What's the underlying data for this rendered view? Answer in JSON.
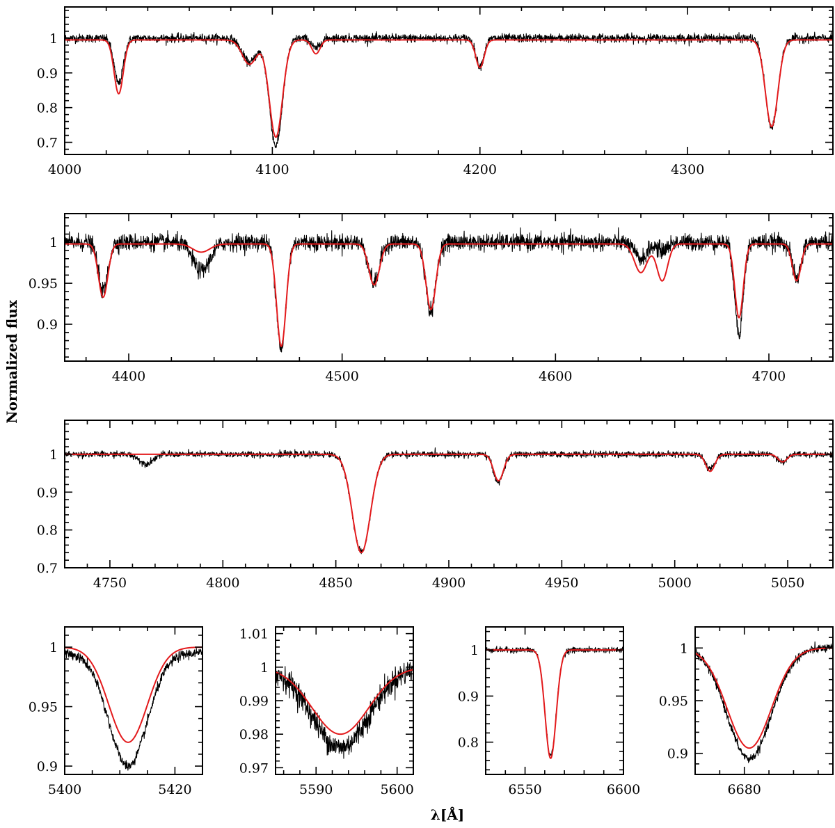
{
  "figure": {
    "ylabel": "Normalized flux",
    "xlabel": "λ[Å]",
    "colors": {
      "observed": "#000000",
      "model": "#e31a1c"
    }
  },
  "chart_data": [
    {
      "type": "line",
      "id": "panel-1",
      "xlim": [
        4000,
        4370
      ],
      "ylim": [
        0.665,
        1.09
      ],
      "xticks": [
        4000,
        4100,
        4200,
        4300
      ],
      "yticks": [
        0.7,
        0.8,
        0.9,
        1
      ],
      "continuum": {
        "observed": 1.0,
        "model": 0.995
      },
      "lines": [
        {
          "center": 4026,
          "depth_obs": 0.13,
          "depth_mod": 0.155,
          "width": 2.2
        },
        {
          "center": 4089,
          "depth_obs": 0.07,
          "depth_mod": 0.07,
          "width": 3.5
        },
        {
          "center": 4101.7,
          "depth_obs": 0.31,
          "depth_mod": 0.28,
          "width": 3.2
        },
        {
          "center": 4121,
          "depth_obs": 0.03,
          "depth_mod": 0.04,
          "width": 2
        },
        {
          "center": 4200,
          "depth_obs": 0.08,
          "depth_mod": 0.08,
          "width": 2
        },
        {
          "center": 4340.5,
          "depth_obs": 0.26,
          "depth_mod": 0.25,
          "width": 3
        }
      ],
      "series": [
        {
          "name": "",
          "role": "observed",
          "noise": 0.006
        },
        {
          "name": "",
          "role": "model"
        }
      ]
    },
    {
      "type": "line",
      "id": "panel-2",
      "xlim": [
        4370,
        4730
      ],
      "ylim": [
        0.855,
        1.035
      ],
      "xticks": [
        4400,
        4500,
        4600,
        4700
      ],
      "yticks": [
        0.9,
        0.95,
        1
      ],
      "continuum": {
        "observed": 1.0,
        "model": 0.998
      },
      "lines": [
        {
          "center": 4388,
          "depth_obs": 0.06,
          "depth_mod": 0.065,
          "width": 2.2
        },
        {
          "center": 4434,
          "depth_obs": 0.035,
          "depth_mod": 0.01,
          "width": 4
        },
        {
          "center": 4471.5,
          "depth_obs": 0.13,
          "depth_mod": 0.125,
          "width": 2.2
        },
        {
          "center": 4515,
          "depth_obs": 0.05,
          "depth_mod": 0.05,
          "width": 2.5
        },
        {
          "center": 4541.6,
          "depth_obs": 0.085,
          "depth_mod": 0.08,
          "width": 2.3
        },
        {
          "center": 4640,
          "depth_obs": 0.02,
          "depth_mod": 0.035,
          "width": 3
        },
        {
          "center": 4650,
          "depth_obs": 0.01,
          "depth_mod": 0.045,
          "width": 2.5
        },
        {
          "center": 4686,
          "depth_obs": 0.11,
          "depth_mod": 0.09,
          "width": 2
        },
        {
          "center": 4713,
          "depth_obs": 0.045,
          "depth_mod": 0.045,
          "width": 2
        }
      ],
      "series": [
        {
          "name": "",
          "role": "observed",
          "noise": 0.005
        },
        {
          "name": "",
          "role": "model"
        }
      ]
    },
    {
      "type": "line",
      "id": "panel-3",
      "xlim": [
        4730,
        5070
      ],
      "ylim": [
        0.7,
        1.09
      ],
      "xticks": [
        4750,
        4800,
        4850,
        4900,
        4950,
        5000,
        5050
      ],
      "yticks": [
        0.7,
        0.8,
        0.9,
        1
      ],
      "continuum": {
        "observed": 1.0,
        "model": 1.0
      },
      "lines": [
        {
          "center": 4766,
          "depth_obs": 0.025,
          "depth_mod": 0.0,
          "width": 3
        },
        {
          "center": 4861.3,
          "depth_obs": 0.26,
          "depth_mod": 0.26,
          "width": 4
        },
        {
          "center": 4922,
          "depth_obs": 0.075,
          "depth_mod": 0.07,
          "width": 2.2
        },
        {
          "center": 5015.7,
          "depth_obs": 0.04,
          "depth_mod": 0.045,
          "width": 2
        },
        {
          "center": 5047.7,
          "depth_obs": 0.02,
          "depth_mod": 0.02,
          "width": 2
        }
      ],
      "series": [
        {
          "name": "",
          "role": "observed",
          "noise": 0.004
        },
        {
          "name": "",
          "role": "model"
        }
      ]
    },
    {
      "type": "line",
      "id": "panel-4",
      "xlim": [
        5400,
        5425
      ],
      "ylim": [
        0.893,
        1.017
      ],
      "xticks": [
        5400,
        5420
      ],
      "yticks": [
        0.9,
        0.95,
        1
      ],
      "continuum": {
        "observed": 0.995,
        "model": 1.0
      },
      "lines": [
        {
          "center": 5411.5,
          "depth_obs": 0.095,
          "depth_mod": 0.08,
          "width": 3.5
        }
      ],
      "series": [
        {
          "name": "",
          "role": "observed",
          "noise": 0.002
        },
        {
          "name": "",
          "role": "model"
        }
      ]
    },
    {
      "type": "line",
      "id": "panel-5",
      "xlim": [
        5585,
        5602
      ],
      "ylim": [
        0.968,
        1.012
      ],
      "xticks": [
        5590,
        5600
      ],
      "yticks": [
        0.97,
        0.98,
        0.99,
        1,
        1.01
      ],
      "continuum": {
        "observed": 1.0,
        "model": 1.0
      },
      "lines": [
        {
          "center": 5593,
          "depth_obs": 0.024,
          "depth_mod": 0.02,
          "width": 3.5
        }
      ],
      "series": [
        {
          "name": "",
          "role": "observed",
          "noise": 0.0018
        },
        {
          "name": "",
          "role": "model"
        }
      ]
    },
    {
      "type": "line",
      "id": "panel-6",
      "xlim": [
        6530,
        6600
      ],
      "ylim": [
        0.73,
        1.05
      ],
      "xticks": [
        6550,
        6600
      ],
      "yticks": [
        0.8,
        0.9,
        1
      ],
      "continuum": {
        "observed": 1.0,
        "model": 1.0
      },
      "lines": [
        {
          "center": 6563,
          "depth_obs": 0.23,
          "depth_mod": 0.235,
          "width": 2.8
        }
      ],
      "series": [
        {
          "name": "",
          "role": "observed",
          "noise": 0.003
        },
        {
          "name": "",
          "role": "model"
        }
      ]
    },
    {
      "type": "line",
      "id": "panel-7",
      "xlim": [
        6670,
        6698
      ],
      "ylim": [
        0.88,
        1.02
      ],
      "xticks": [
        6680
      ],
      "yticks": [
        0.9,
        0.95,
        1
      ],
      "continuum": {
        "observed": 1.0,
        "model": 1.0
      },
      "lines": [
        {
          "center": 6681,
          "depth_obs": 0.105,
          "depth_mod": 0.095,
          "width": 4.5
        }
      ],
      "series": [
        {
          "name": "",
          "role": "observed",
          "noise": 0.002
        },
        {
          "name": "",
          "role": "model"
        }
      ]
    }
  ]
}
